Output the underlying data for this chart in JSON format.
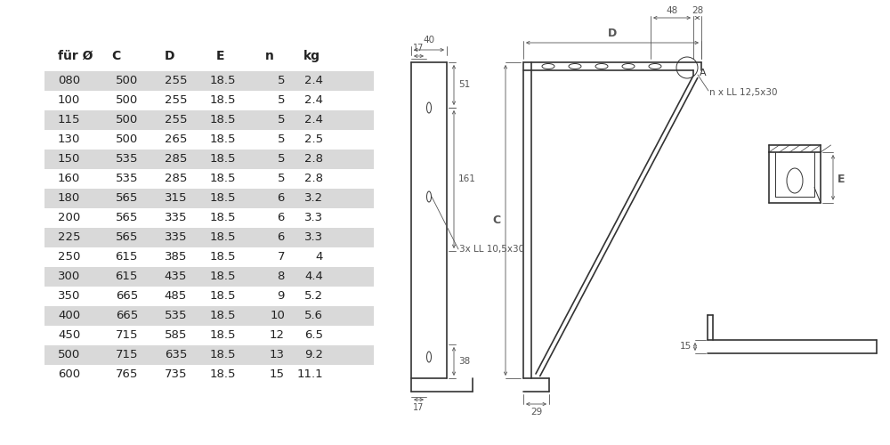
{
  "table_headers": [
    "für Ø",
    "C",
    "D",
    "E",
    "n",
    "kg"
  ],
  "table_rows": [
    [
      "080",
      "500",
      "255",
      "18.5",
      "5",
      "2.4"
    ],
    [
      "100",
      "500",
      "255",
      "18.5",
      "5",
      "2.4"
    ],
    [
      "115",
      "500",
      "255",
      "18.5",
      "5",
      "2.4"
    ],
    [
      "130",
      "500",
      "265",
      "18.5",
      "5",
      "2.5"
    ],
    [
      "150",
      "535",
      "285",
      "18.5",
      "5",
      "2.8"
    ],
    [
      "160",
      "535",
      "285",
      "18.5",
      "5",
      "2.8"
    ],
    [
      "180",
      "565",
      "315",
      "18.5",
      "6",
      "3.2"
    ],
    [
      "200",
      "565",
      "335",
      "18.5",
      "6",
      "3.3"
    ],
    [
      "225",
      "565",
      "335",
      "18.5",
      "6",
      "3.3"
    ],
    [
      "250",
      "615",
      "385",
      "18.5",
      "7",
      "4"
    ],
    [
      "300",
      "615",
      "435",
      "18.5",
      "8",
      "4.4"
    ],
    [
      "350",
      "665",
      "485",
      "18.5",
      "9",
      "5.2"
    ],
    [
      "400",
      "665",
      "535",
      "18.5",
      "10",
      "5.6"
    ],
    [
      "450",
      "715",
      "585",
      "18.5",
      "12",
      "6.5"
    ],
    [
      "500",
      "715",
      "635",
      "18.5",
      "13",
      "9.2"
    ],
    [
      "600",
      "765",
      "735",
      "18.5",
      "15",
      "11.1"
    ]
  ],
  "shaded_rows": [
    0,
    2,
    4,
    6,
    8,
    10,
    12,
    14
  ],
  "row_bg_shaded": "#d9d9d9",
  "row_bg_normal": "#ffffff",
  "line_color": "#333333",
  "dim_color": "#555555",
  "bg_color": "#ffffff"
}
